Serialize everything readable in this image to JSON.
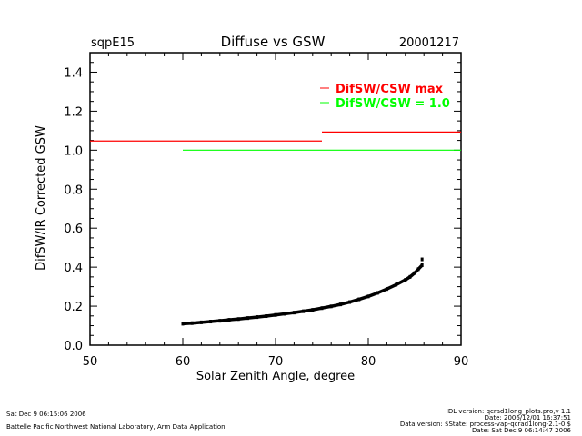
{
  "chart_data": {
    "type": "scatter",
    "site": "sqpE15",
    "title": "Diffuse vs GSW",
    "date": "20001217",
    "xlabel": "Solar Zenith Angle, degree",
    "ylabel": "DifSW/IR Corrected GSW",
    "xlim": [
      50,
      90
    ],
    "ylim": [
      0,
      1.5
    ],
    "xticks": [
      "50",
      "60",
      "70",
      "80",
      "90"
    ],
    "yticks": [
      "0.0",
      "0.2",
      "0.4",
      "0.6",
      "0.8",
      "1.0",
      "1.2",
      "1.4"
    ],
    "legend": [
      {
        "label": "DifSW/CSW max",
        "color": "#ff0000"
      },
      {
        "label": "DifSW/CSW = 1.0",
        "color": "#00ff00"
      }
    ],
    "legend_position": "top-right",
    "max_lines": [
      {
        "x": [
          50,
          75
        ],
        "y": 1.047,
        "color": "#ff0000"
      },
      {
        "x": [
          75,
          90
        ],
        "y": 1.093,
        "color": "#ff0000"
      }
    ],
    "unity_line": {
      "x": [
        60,
        90
      ],
      "y": 1.0,
      "color": "#00ff00"
    },
    "points": [
      [
        60,
        0.11
      ],
      [
        61,
        0.113
      ],
      [
        62,
        0.117
      ],
      [
        63,
        0.121
      ],
      [
        64,
        0.125
      ],
      [
        65,
        0.13
      ],
      [
        66,
        0.134
      ],
      [
        67,
        0.139
      ],
      [
        68,
        0.144
      ],
      [
        69,
        0.149
      ],
      [
        70,
        0.155
      ],
      [
        71,
        0.161
      ],
      [
        72,
        0.167
      ],
      [
        73,
        0.174
      ],
      [
        74,
        0.181
      ],
      [
        75,
        0.19
      ],
      [
        76,
        0.199
      ],
      [
        77,
        0.209
      ],
      [
        78,
        0.221
      ],
      [
        79,
        0.235
      ],
      [
        80,
        0.25
      ],
      [
        81,
        0.268
      ],
      [
        82,
        0.288
      ],
      [
        83,
        0.31
      ],
      [
        84,
        0.335
      ],
      [
        84.5,
        0.35
      ],
      [
        85,
        0.37
      ],
      [
        85.4,
        0.39
      ],
      [
        85.8,
        0.41
      ],
      [
        85.8,
        0.44
      ]
    ]
  },
  "footer": {
    "timestamp": "Sat Dec  9 06:15:06 2006",
    "lab": "Battelle Pacific Northwest National Laboratory, Arm Data Application",
    "idl_version": "IDL version: qcrad1long_plots.pro,v 1.1",
    "idl_date": "Date: 2006/12/01 16:37:51",
    "data_version": "Data version: $State: process-vap-qcrad1long-2.1-0 $",
    "data_date": "Date: Sat Dec  9 06:14:47 2006"
  }
}
